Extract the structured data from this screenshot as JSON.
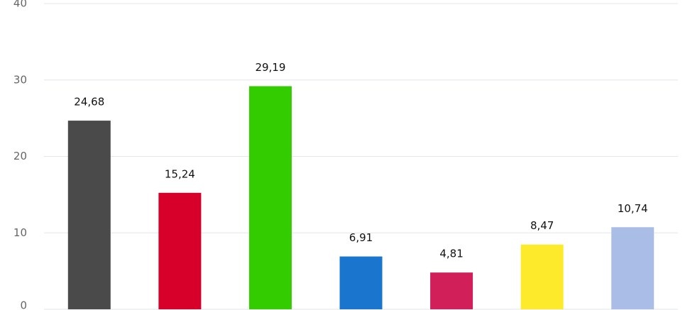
{
  "chart_data": {
    "type": "bar",
    "categories": [
      null,
      null,
      null,
      null,
      null,
      null,
      null
    ],
    "values": [
      24.68,
      15.24,
      29.19,
      6.91,
      4.81,
      8.47,
      10.74
    ],
    "value_labels": [
      "24,68",
      "15,24",
      "29,19",
      "6,91",
      "4,81",
      "8,47",
      "10,74"
    ],
    "colors": [
      "#4a4a4a",
      "#d6002a",
      "#33cc00",
      "#1a75cf",
      "#d11f5a",
      "#fcea2b",
      "#a9bde6"
    ],
    "ylim": [
      0,
      40
    ],
    "yticks": [
      0,
      10,
      20,
      30,
      40
    ],
    "grid": true
  }
}
